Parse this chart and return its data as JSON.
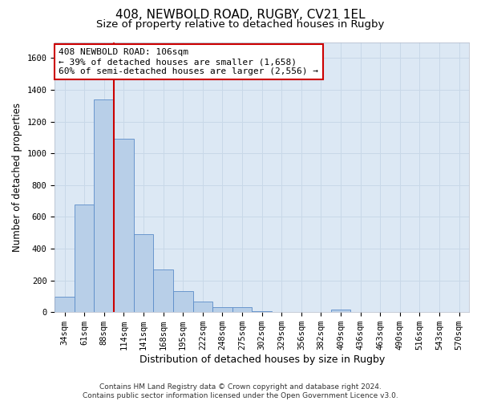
{
  "title1": "408, NEWBOLD ROAD, RUGBY, CV21 1EL",
  "title2": "Size of property relative to detached houses in Rugby",
  "xlabel": "Distribution of detached houses by size in Rugby",
  "ylabel": "Number of detached properties",
  "categories": [
    "34sqm",
    "61sqm",
    "88sqm",
    "114sqm",
    "141sqm",
    "168sqm",
    "195sqm",
    "222sqm",
    "248sqm",
    "275sqm",
    "302sqm",
    "329sqm",
    "356sqm",
    "382sqm",
    "409sqm",
    "436sqm",
    "463sqm",
    "490sqm",
    "516sqm",
    "543sqm",
    "570sqm"
  ],
  "values": [
    95,
    680,
    1340,
    1090,
    490,
    270,
    130,
    65,
    30,
    30,
    5,
    0,
    0,
    0,
    15,
    0,
    0,
    0,
    0,
    0,
    0
  ],
  "bar_color": "#b8cfe8",
  "bar_edge_color": "#5b8cc8",
  "vline_x": 2.5,
  "vline_color": "#cc0000",
  "annotation_line1": "408 NEWBOLD ROAD: 106sqm",
  "annotation_line2": "← 39% of detached houses are smaller (1,658)",
  "annotation_line3": "60% of semi-detached houses are larger (2,556) →",
  "annotation_box_color": "#ffffff",
  "annotation_edge_color": "#cc0000",
  "ylim": [
    0,
    1700
  ],
  "yticks": [
    0,
    200,
    400,
    600,
    800,
    1000,
    1200,
    1400,
    1600
  ],
  "grid_color": "#c8d8e8",
  "background_color": "#dce8f4",
  "footer_text": "Contains HM Land Registry data © Crown copyright and database right 2024.\nContains public sector information licensed under the Open Government Licence v3.0.",
  "title1_fontsize": 11,
  "title2_fontsize": 9.5,
  "xlabel_fontsize": 9,
  "ylabel_fontsize": 8.5,
  "tick_fontsize": 7.5,
  "annotation_fontsize": 8,
  "footer_fontsize": 6.5
}
